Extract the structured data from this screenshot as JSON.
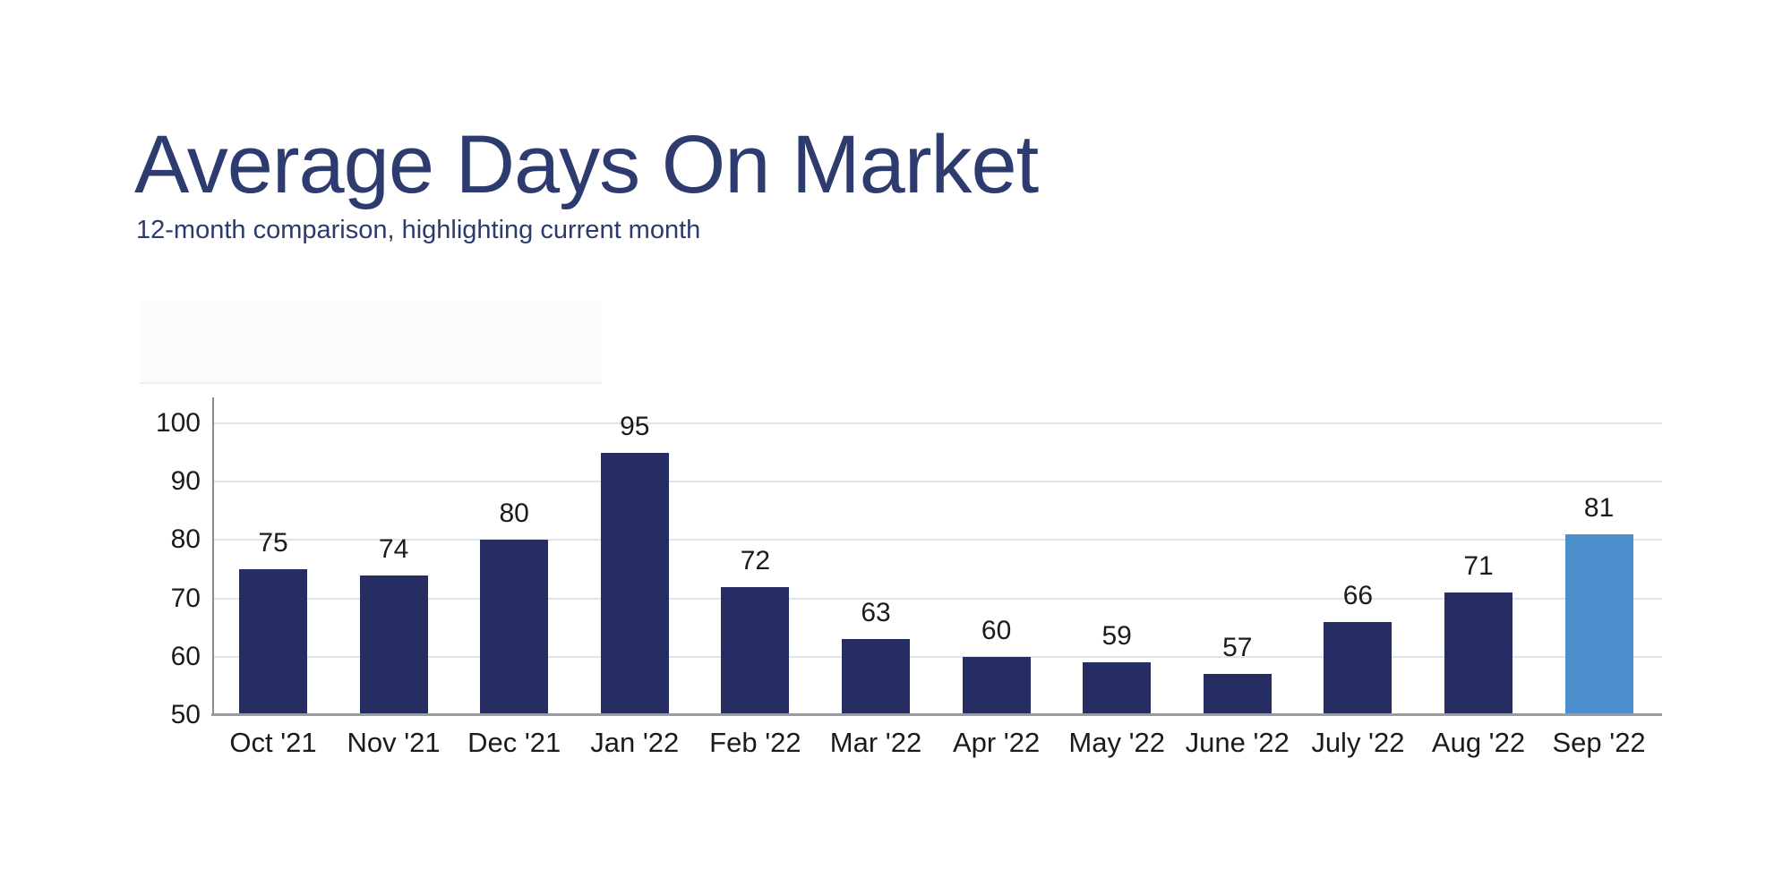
{
  "header": {
    "title": "Average Days On Market",
    "subtitle": "12-month comparison, highlighting current month"
  },
  "chart_data": {
    "type": "bar",
    "title": "Average Days On Market",
    "subtitle": "12-month comparison, highlighting current month",
    "categories": [
      "Oct '21",
      "Nov '21",
      "Dec '21",
      "Jan '22",
      "Feb '22",
      "Mar '22",
      "Apr '22",
      "May '22",
      "June '22",
      "July '22",
      "Aug '22",
      "Sep '22"
    ],
    "values": [
      75,
      74,
      80,
      95,
      72,
      63,
      60,
      59,
      57,
      66,
      71,
      81
    ],
    "highlight_index": 11,
    "highlighted_category": "Sep '22",
    "xlabel": "",
    "ylabel": "",
    "ylim": [
      50,
      100
    ],
    "yticks": [
      50,
      60,
      70,
      80,
      90,
      100
    ],
    "grid": true,
    "value_labels": true,
    "legend_position": "none",
    "colors": {
      "bar": "#252d63",
      "highlight": "#4b90cd",
      "gridline": "#dde5f0",
      "y_axis": "#8a8a8a",
      "x_axis": "#9c9c9c",
      "tick_label": "#1b1b1b",
      "value_label": "#1b1b1b",
      "title": "#2e3b6f",
      "subtitle": "#2d3a6c"
    }
  }
}
